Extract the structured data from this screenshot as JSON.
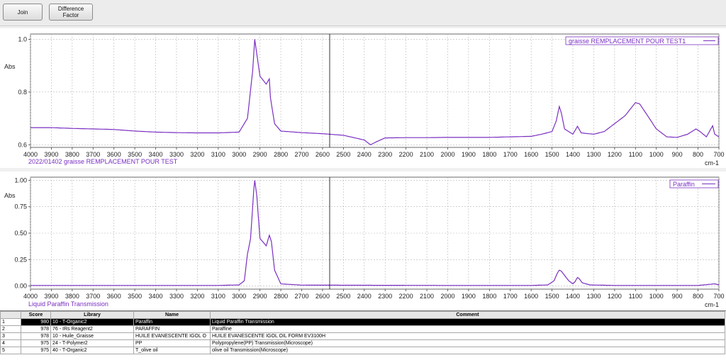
{
  "toolbar": {
    "join_label": "Join",
    "difference_factor_label": "Difference\nFactor"
  },
  "top_chart": {
    "ylabel": "Abs",
    "xunit": "cm-1",
    "legend": "graisse REMPLACEMENT POUR TEST1",
    "caption": "2022/01402 graisse REMPLACEMENT POUR TEST",
    "color": "#7a2fc2"
  },
  "bottom_chart": {
    "ylabel": "Abs",
    "xunit": "cm-1",
    "legend": "Paraffin",
    "caption": "Liquid Paraffin  Transmission",
    "color": "#7a2fc2"
  },
  "chart_data": [
    {
      "type": "line",
      "xlabel": "cm-1",
      "ylabel": "Abs",
      "xlim": [
        4000,
        700
      ],
      "ylim": [
        0.59,
        1.02
      ],
      "xticks": [
        "4000",
        "3900",
        "3800",
        "3700",
        "3600",
        "3500",
        "3400",
        "3300",
        "3200",
        "3100",
        "3000",
        "2900",
        "2800",
        "2700",
        "2600",
        "2500",
        "2400",
        "2300",
        "2200",
        "2100",
        "2000",
        "1900",
        "1800",
        "1700",
        "1600",
        "1500",
        "1400",
        "1300",
        "1200",
        "1100",
        "1000",
        "900",
        "800",
        "700"
      ],
      "yticks": [
        "1.0",
        "0.8",
        "0.6"
      ],
      "series": [
        {
          "name": "graisse REMPLACEMENT POUR TEST1",
          "x": [
            4000,
            3900,
            3800,
            3700,
            3600,
            3500,
            3400,
            3300,
            3200,
            3100,
            3000,
            2960,
            2935,
            2925,
            2900,
            2870,
            2855,
            2850,
            2830,
            2800,
            2700,
            2600,
            2500,
            2400,
            2370,
            2340,
            2300,
            2200,
            2100,
            2000,
            1900,
            1800,
            1700,
            1600,
            1550,
            1500,
            1480,
            1465,
            1455,
            1440,
            1400,
            1378,
            1360,
            1300,
            1250,
            1200,
            1150,
            1100,
            1080,
            1050,
            1000,
            950,
            900,
            850,
            810,
            790,
            760,
            730,
            720,
            700
          ],
          "y": [
            0.665,
            0.665,
            0.662,
            0.66,
            0.658,
            0.652,
            0.648,
            0.646,
            0.645,
            0.645,
            0.648,
            0.7,
            0.88,
            1.0,
            0.86,
            0.83,
            0.85,
            0.78,
            0.68,
            0.652,
            0.646,
            0.642,
            0.636,
            0.618,
            0.6,
            0.612,
            0.626,
            0.627,
            0.627,
            0.628,
            0.628,
            0.628,
            0.63,
            0.632,
            0.64,
            0.65,
            0.69,
            0.745,
            0.72,
            0.66,
            0.64,
            0.67,
            0.645,
            0.64,
            0.65,
            0.68,
            0.71,
            0.76,
            0.755,
            0.72,
            0.66,
            0.63,
            0.628,
            0.64,
            0.66,
            0.65,
            0.63,
            0.672,
            0.64,
            0.63
          ]
        }
      ]
    },
    {
      "type": "line",
      "xlabel": "cm-1",
      "ylabel": "Abs",
      "xlim": [
        4000,
        700
      ],
      "ylim": [
        -0.03,
        1.03
      ],
      "xticks": [
        "4000",
        "3900",
        "3800",
        "3700",
        "3600",
        "3500",
        "3400",
        "3300",
        "3200",
        "3100",
        "3000",
        "2900",
        "2800",
        "2700",
        "2600",
        "2500",
        "2400",
        "2300",
        "2200",
        "2100",
        "2000",
        "1900",
        "1800",
        "1700",
        "1600",
        "1500",
        "1400",
        "1300",
        "1200",
        "1100",
        "1000",
        "900",
        "800",
        "700"
      ],
      "yticks": [
        "1.00",
        "0.75",
        "0.50",
        "0.25",
        "0.00"
      ],
      "series": [
        {
          "name": "Paraffin",
          "x": [
            4000,
            3500,
            3100,
            3000,
            2975,
            2960,
            2945,
            2930,
            2925,
            2915,
            2900,
            2870,
            2855,
            2845,
            2830,
            2800,
            2700,
            2000,
            1600,
            1520,
            1490,
            1475,
            1465,
            1455,
            1440,
            1420,
            1400,
            1390,
            1378,
            1370,
            1355,
            1320,
            1200,
            1000,
            800,
            720,
            700
          ],
          "y": [
            0.005,
            0.005,
            0.005,
            0.01,
            0.05,
            0.3,
            0.45,
            0.9,
            1.0,
            0.85,
            0.45,
            0.38,
            0.48,
            0.42,
            0.15,
            0.02,
            0.008,
            0.005,
            0.005,
            0.01,
            0.05,
            0.12,
            0.15,
            0.14,
            0.1,
            0.05,
            0.02,
            0.04,
            0.08,
            0.07,
            0.03,
            0.01,
            0.005,
            0.005,
            0.005,
            0.02,
            0.01
          ]
        }
      ]
    }
  ],
  "results_table": {
    "headers": [
      "",
      "Score",
      "Library",
      "Name",
      "Comment"
    ],
    "rows": [
      {
        "idx": "1",
        "score": "980",
        "library": "10 - T-Organic2",
        "name": "Paraffin",
        "comment": "Liquid Paraffin  Transmission",
        "selected": true
      },
      {
        "idx": "2",
        "score": "978",
        "library": "76 - IRs Reagent2",
        "name": "PARAFFIN",
        "comment": "Paraffine",
        "selected": false
      },
      {
        "idx": "3",
        "score": "978",
        "library": "10 - Huile_Graisse",
        "name": "HUILE EVANESCENTE IGOL O",
        "comment": "HUILE EVANESCENTE IGOL OIL FORM EV3100H",
        "selected": false
      },
      {
        "idx": "4",
        "score": "975",
        "library": "24 - T-Polymer2",
        "name": "PP",
        "comment": "Polypropylene(PP)  Transmission(Microscope)",
        "selected": false
      },
      {
        "idx": "5",
        "score": "975",
        "library": "40 - T-Organic2",
        "name": "T_olive oil",
        "comment": "olive oil  Transmission(Microscope)",
        "selected": false
      }
    ]
  }
}
